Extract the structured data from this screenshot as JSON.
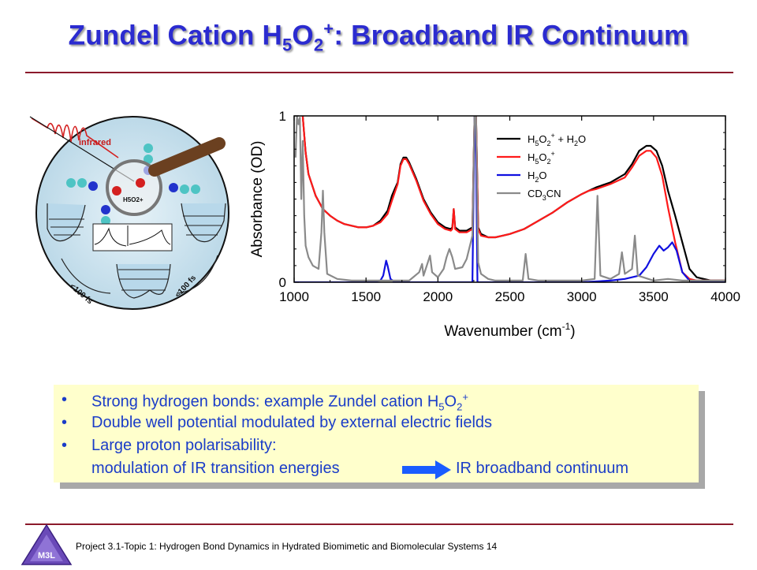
{
  "slide": {
    "title_prefix": "Zundel Cation H",
    "title_sub1": "5",
    "title_o": "O",
    "title_sub2": "2",
    "title_sup": "+",
    "title_suffix": ": Broadband IR Continuum",
    "footer": "Project 3.1-Topic 1: Hydrogen Bond Dynamics in Hydrated Biomimetic and Biomolecular Systems 14",
    "logo_text": "M3L"
  },
  "illustration": {
    "infrared_label": "infrared",
    "ion_label": "H5O2+",
    "time_label_left": "<100 fs",
    "time_label_right": "<100 fs"
  },
  "colors": {
    "title": "#2b2bd0",
    "rule": "#8b1a2b",
    "bullet_text": "#1a3cc8",
    "bullet_bg": "#ffffcc",
    "arrow": "#1a5cff"
  },
  "bullets": {
    "b1_text": "Strong hydrogen bonds: example Zundel cation H",
    "b1_sub1": "5",
    "b1_o": "O",
    "b1_sub2": "2",
    "b1_sup": "+",
    "b2": "Double well potential modulated by external electric fields",
    "b3": "Large proton polarisability:",
    "b4_left": "modulation of IR transition energies",
    "b4_right": "IR broadband continuum",
    "bullet_char": "•"
  },
  "chart_data": {
    "type": "line",
    "xlabel": "Wavenumber (cm-1)",
    "xlabel_main": "Wavenumber (cm",
    "xlabel_sup": "-1",
    "xlabel_end": ")",
    "ylabel": "Absorbance (OD)",
    "xlim": [
      1000,
      4000
    ],
    "ylim": [
      0,
      1
    ],
    "xticks": [
      "1000",
      "1500",
      "2000",
      "2500",
      "3000",
      "3500",
      "4000"
    ],
    "yticks": [
      "0",
      "1"
    ],
    "legend_position": "top-right",
    "series": [
      {
        "name": "H5O2+ + H2O",
        "legend_main": "H",
        "legend_s1": "5",
        "legend_o": "O",
        "legend_s2": "2",
        "legend_sup": "+",
        "legend_tail": " + H",
        "legend_s3": "2",
        "legend_end": "O",
        "color": "#000000",
        "points": [
          [
            1060,
            1.0
          ],
          [
            1080,
            0.78
          ],
          [
            1100,
            0.65
          ],
          [
            1150,
            0.52
          ],
          [
            1200,
            0.44
          ],
          [
            1250,
            0.4
          ],
          [
            1300,
            0.37
          ],
          [
            1350,
            0.35
          ],
          [
            1400,
            0.34
          ],
          [
            1450,
            0.33
          ],
          [
            1500,
            0.33
          ],
          [
            1550,
            0.34
          ],
          [
            1600,
            0.37
          ],
          [
            1650,
            0.43
          ],
          [
            1680,
            0.52
          ],
          [
            1700,
            0.56
          ],
          [
            1720,
            0.6
          ],
          [
            1740,
            0.71
          ],
          [
            1760,
            0.75
          ],
          [
            1780,
            0.75
          ],
          [
            1800,
            0.72
          ],
          [
            1850,
            0.62
          ],
          [
            1900,
            0.5
          ],
          [
            1950,
            0.42
          ],
          [
            2000,
            0.36
          ],
          [
            2050,
            0.33
          ],
          [
            2090,
            0.32
          ],
          [
            2100,
            0.33
          ],
          [
            2110,
            0.44
          ],
          [
            2120,
            0.33
          ],
          [
            2150,
            0.31
          ],
          [
            2200,
            0.31
          ],
          [
            2240,
            0.33
          ],
          [
            2255,
            1.0
          ],
          [
            2265,
            1.0
          ],
          [
            2280,
            0.33
          ],
          [
            2300,
            0.29
          ],
          [
            2350,
            0.27
          ],
          [
            2400,
            0.27
          ],
          [
            2500,
            0.29
          ],
          [
            2600,
            0.32
          ],
          [
            2700,
            0.37
          ],
          [
            2800,
            0.42
          ],
          [
            2900,
            0.48
          ],
          [
            3000,
            0.53
          ],
          [
            3050,
            0.55
          ],
          [
            3100,
            0.57
          ],
          [
            3200,
            0.6
          ],
          [
            3300,
            0.65
          ],
          [
            3350,
            0.71
          ],
          [
            3400,
            0.79
          ],
          [
            3450,
            0.82
          ],
          [
            3480,
            0.82
          ],
          [
            3520,
            0.79
          ],
          [
            3560,
            0.7
          ],
          [
            3600,
            0.55
          ],
          [
            3650,
            0.4
          ],
          [
            3700,
            0.24
          ],
          [
            3750,
            0.08
          ],
          [
            3800,
            0.03
          ],
          [
            3900,
            0.01
          ],
          [
            4000,
            0.01
          ]
        ]
      },
      {
        "name": "H5O2+",
        "legend_main": "H",
        "legend_s1": "5",
        "legend_o": "O",
        "legend_s2": "2",
        "legend_sup": "+",
        "legend_tail": "",
        "legend_s3": "",
        "legend_end": "",
        "color": "#ff1a1a",
        "points": [
          [
            1060,
            1.0
          ],
          [
            1080,
            0.78
          ],
          [
            1100,
            0.65
          ],
          [
            1150,
            0.52
          ],
          [
            1200,
            0.44
          ],
          [
            1250,
            0.4
          ],
          [
            1300,
            0.37
          ],
          [
            1350,
            0.35
          ],
          [
            1400,
            0.34
          ],
          [
            1450,
            0.33
          ],
          [
            1500,
            0.33
          ],
          [
            1550,
            0.34
          ],
          [
            1600,
            0.36
          ],
          [
            1650,
            0.41
          ],
          [
            1680,
            0.49
          ],
          [
            1700,
            0.54
          ],
          [
            1720,
            0.59
          ],
          [
            1740,
            0.7
          ],
          [
            1760,
            0.74
          ],
          [
            1780,
            0.74
          ],
          [
            1800,
            0.71
          ],
          [
            1850,
            0.61
          ],
          [
            1900,
            0.49
          ],
          [
            1950,
            0.41
          ],
          [
            2000,
            0.35
          ],
          [
            2050,
            0.32
          ],
          [
            2090,
            0.31
          ],
          [
            2100,
            0.32
          ],
          [
            2110,
            0.44
          ],
          [
            2120,
            0.32
          ],
          [
            2150,
            0.3
          ],
          [
            2200,
            0.3
          ],
          [
            2240,
            0.32
          ],
          [
            2255,
            1.0
          ],
          [
            2265,
            1.0
          ],
          [
            2280,
            0.32
          ],
          [
            2300,
            0.28
          ],
          [
            2350,
            0.27
          ],
          [
            2400,
            0.27
          ],
          [
            2500,
            0.29
          ],
          [
            2600,
            0.32
          ],
          [
            2700,
            0.37
          ],
          [
            2800,
            0.42
          ],
          [
            2900,
            0.48
          ],
          [
            3000,
            0.53
          ],
          [
            3050,
            0.55
          ],
          [
            3100,
            0.56
          ],
          [
            3200,
            0.59
          ],
          [
            3300,
            0.63
          ],
          [
            3350,
            0.69
          ],
          [
            3400,
            0.76
          ],
          [
            3450,
            0.79
          ],
          [
            3480,
            0.79
          ],
          [
            3520,
            0.75
          ],
          [
            3560,
            0.64
          ],
          [
            3600,
            0.45
          ],
          [
            3650,
            0.24
          ],
          [
            3700,
            0.06
          ],
          [
            3750,
            0.02
          ],
          [
            3800,
            0.01
          ],
          [
            3900,
            0.01
          ],
          [
            4000,
            0.01
          ]
        ]
      },
      {
        "name": "H2O",
        "legend_main": "H",
        "legend_s1": "2",
        "legend_o": "O",
        "legend_s2": "",
        "legend_sup": "",
        "legend_tail": "",
        "legend_s3": "",
        "legend_end": "",
        "color": "#1010e0",
        "points": [
          [
            1000,
            0.0
          ],
          [
            1500,
            0.0
          ],
          [
            1600,
            0.01
          ],
          [
            1620,
            0.04
          ],
          [
            1640,
            0.13
          ],
          [
            1650,
            0.1
          ],
          [
            1670,
            0.02
          ],
          [
            1700,
            0.0
          ],
          [
            2240,
            0.0
          ],
          [
            2255,
            1.0
          ],
          [
            2262,
            1.0
          ],
          [
            2275,
            0.0
          ],
          [
            3000,
            0.0
          ],
          [
            3200,
            0.01
          ],
          [
            3300,
            0.02
          ],
          [
            3400,
            0.04
          ],
          [
            3450,
            0.09
          ],
          [
            3500,
            0.17
          ],
          [
            3540,
            0.22
          ],
          [
            3570,
            0.19
          ],
          [
            3600,
            0.21
          ],
          [
            3630,
            0.24
          ],
          [
            3660,
            0.19
          ],
          [
            3700,
            0.06
          ],
          [
            3750,
            0.01
          ],
          [
            3800,
            0.0
          ],
          [
            4000,
            0.0
          ]
        ]
      },
      {
        "name": "CD3CN",
        "legend_main": "CD",
        "legend_s1": "3",
        "legend_o": "CN",
        "legend_s2": "",
        "legend_sup": "",
        "legend_tail": "",
        "legend_s3": "",
        "legend_end": "",
        "color": "#8a8a8a",
        "points": [
          [
            1010,
            0.75
          ],
          [
            1020,
            1.0
          ],
          [
            1030,
            0.95
          ],
          [
            1040,
            0.99
          ],
          [
            1050,
            0.5
          ],
          [
            1060,
            0.85
          ],
          [
            1070,
            0.4
          ],
          [
            1080,
            0.22
          ],
          [
            1100,
            0.15
          ],
          [
            1130,
            0.1
          ],
          [
            1170,
            0.08
          ],
          [
            1190,
            0.3
          ],
          [
            1200,
            0.55
          ],
          [
            1210,
            0.3
          ],
          [
            1230,
            0.05
          ],
          [
            1300,
            0.02
          ],
          [
            1400,
            0.01
          ],
          [
            1500,
            0.01
          ],
          [
            1800,
            0.01
          ],
          [
            1870,
            0.06
          ],
          [
            1890,
            0.11
          ],
          [
            1900,
            0.04
          ],
          [
            1930,
            0.12
          ],
          [
            1945,
            0.16
          ],
          [
            1960,
            0.06
          ],
          [
            2000,
            0.03
          ],
          [
            2040,
            0.08
          ],
          [
            2060,
            0.15
          ],
          [
            2080,
            0.2
          ],
          [
            2100,
            0.15
          ],
          [
            2120,
            0.08
          ],
          [
            2170,
            0.09
          ],
          [
            2200,
            0.14
          ],
          [
            2240,
            0.28
          ],
          [
            2255,
            1.0
          ],
          [
            2265,
            1.0
          ],
          [
            2280,
            0.12
          ],
          [
            2300,
            0.05
          ],
          [
            2350,
            0.02
          ],
          [
            2400,
            0.01
          ],
          [
            2590,
            0.01
          ],
          [
            2610,
            0.17
          ],
          [
            2630,
            0.02
          ],
          [
            2700,
            0.01
          ],
          [
            3000,
            0.01
          ],
          [
            3090,
            0.02
          ],
          [
            3110,
            0.52
          ],
          [
            3130,
            0.04
          ],
          [
            3200,
            0.02
          ],
          [
            3260,
            0.05
          ],
          [
            3280,
            0.18
          ],
          [
            3300,
            0.05
          ],
          [
            3350,
            0.08
          ],
          [
            3370,
            0.28
          ],
          [
            3390,
            0.04
          ],
          [
            3500,
            0.01
          ],
          [
            3600,
            0.02
          ],
          [
            3700,
            0.01
          ],
          [
            4000,
            0.01
          ]
        ]
      }
    ]
  }
}
